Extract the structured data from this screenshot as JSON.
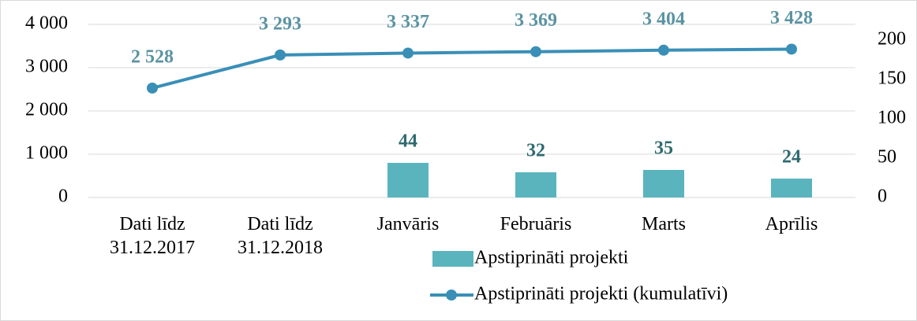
{
  "chart_data": {
    "type": "combo",
    "categories": [
      "Dati līdz 31.12.2017",
      "Dati līdz 31.12.2018",
      "Janvāris",
      "Februāris",
      "Marts",
      "Aprīlis"
    ],
    "series": [
      {
        "name": "Apstiprināti projekti",
        "type": "bar",
        "axis": "y2",
        "color": "#5ab4bd",
        "values": [
          null,
          null,
          44,
          32,
          35,
          24
        ]
      },
      {
        "name": "Apstiprināti projekti (kumulatīvi)",
        "type": "line",
        "axis": "y",
        "color": "#3a8fb7",
        "values": [
          2528,
          3293,
          3337,
          3369,
          3404,
          3428
        ],
        "value_labels": [
          "2 528",
          "3 293",
          "3 337",
          "3 369",
          "3 404",
          "3 428"
        ]
      }
    ],
    "ylim": [
      0,
      4000
    ],
    "yticks": [
      0,
      {
        "value": 1000,
        "label": "1 000"
      },
      {
        "value": 2000,
        "label": "2 000"
      },
      {
        "value": 3000,
        "label": "3 000"
      },
      {
        "value": 4000,
        "label": "4 000"
      }
    ],
    "y2lim": [
      0,
      220
    ],
    "y2ticks": [
      0,
      50,
      100,
      150,
      200
    ],
    "grid": true,
    "legend": "bottom"
  }
}
